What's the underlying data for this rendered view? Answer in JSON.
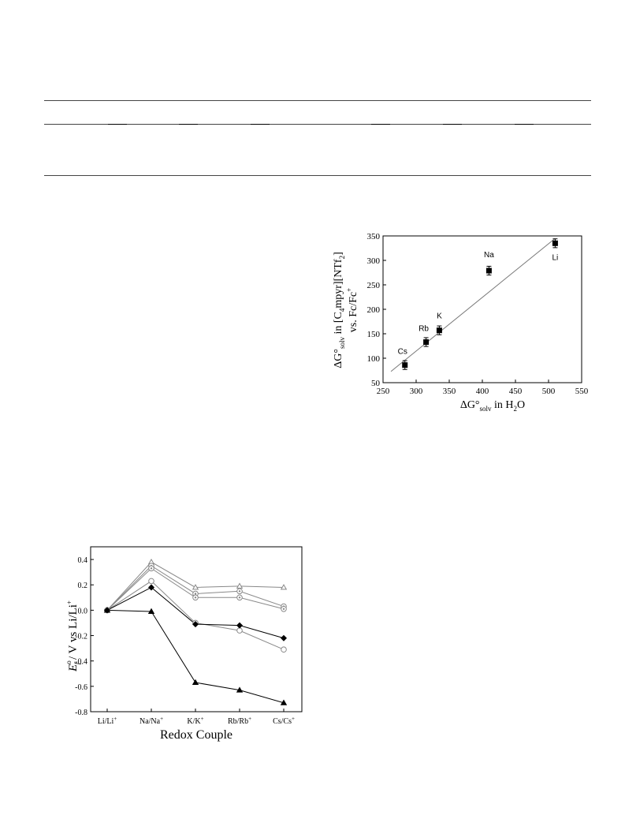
{
  "chart_data": [
    {
      "type": "scatter",
      "xlabel_main": "ΔG°",
      "xlabel_sub": "solv",
      "xlabel_tail": " in H",
      "xlabel_sub2": "2",
      "xlabel_end": "O",
      "ylabel_line1_main": "ΔG°",
      "ylabel_line1_sub": "solv",
      "ylabel_line1_tail": " in [C",
      "ylabel_line1_sub2": "4",
      "ylabel_line1_mid": "mpyr][NTf",
      "ylabel_line1_sub3": "2",
      "ylabel_line1_end": "]",
      "ylabel_line2": "vs. Fc/Fc",
      "ylabel_line2_sup": "+",
      "xlim": [
        250,
        550
      ],
      "ylim": [
        50,
        350
      ],
      "xticks": [
        "250",
        "300",
        "350",
        "400",
        "450",
        "500",
        "550"
      ],
      "yticks": [
        "50",
        "100",
        "150",
        "200",
        "250",
        "300",
        "350"
      ],
      "points": [
        {
          "label": "Cs",
          "x": 283,
          "y": 86,
          "err": 9
        },
        {
          "label": "Rb",
          "x": 315,
          "y": 133,
          "err": 9
        },
        {
          "label": "K",
          "x": 335,
          "y": 157,
          "err": 9
        },
        {
          "label": "Na",
          "x": 410,
          "y": 279,
          "err": 9
        },
        {
          "label": "Li",
          "x": 510,
          "y": 335,
          "err": 9
        }
      ],
      "fit_line": {
        "x": [
          262,
          510
        ],
        "y": [
          73,
          345
        ]
      }
    },
    {
      "type": "line",
      "xlabel": "Redox Couple",
      "ylabel_E": "E",
      "ylabel_sup": "o",
      "ylabel_sub": "f",
      "ylabel_rest": " / V vs Li/Li",
      "ylabel_rest_sup": "+",
      "categories": [
        {
          "base": "Li/Li",
          "sup": "+"
        },
        {
          "base": "Na/Na",
          "sup": "+"
        },
        {
          "base": "K/K",
          "sup": "+"
        },
        {
          "base": "Rb/Rb",
          "sup": "+"
        },
        {
          "base": "Cs/Cs",
          "sup": "+"
        }
      ],
      "ylim": [
        -0.8,
        0.5
      ],
      "yticks": [
        "0.4",
        "0.2",
        "0.0",
        "-0.2",
        "-0.4",
        "-0.6",
        "-0.8"
      ],
      "series": [
        {
          "marker": "triangle-open",
          "color": "#888888",
          "values": [
            0,
            0.38,
            0.18,
            0.19,
            0.18
          ]
        },
        {
          "marker": "circle-dotted",
          "color": "#888888",
          "values": [
            0,
            0.35,
            0.13,
            0.15,
            0.03
          ]
        },
        {
          "marker": "circle-dotted",
          "color": "#888888",
          "values": [
            0,
            0.33,
            0.1,
            0.1,
            0.01
          ]
        },
        {
          "marker": "circle-open",
          "color": "#888888",
          "values": [
            0,
            0.23,
            -0.1,
            -0.16,
            -0.31
          ]
        },
        {
          "marker": "diamond-filled",
          "color": "#000000",
          "values": [
            0,
            0.18,
            -0.11,
            -0.12,
            -0.22
          ]
        },
        {
          "marker": "triangle-filled",
          "color": "#000000",
          "values": [
            0,
            -0.01,
            -0.57,
            -0.63,
            -0.73
          ]
        }
      ]
    }
  ]
}
